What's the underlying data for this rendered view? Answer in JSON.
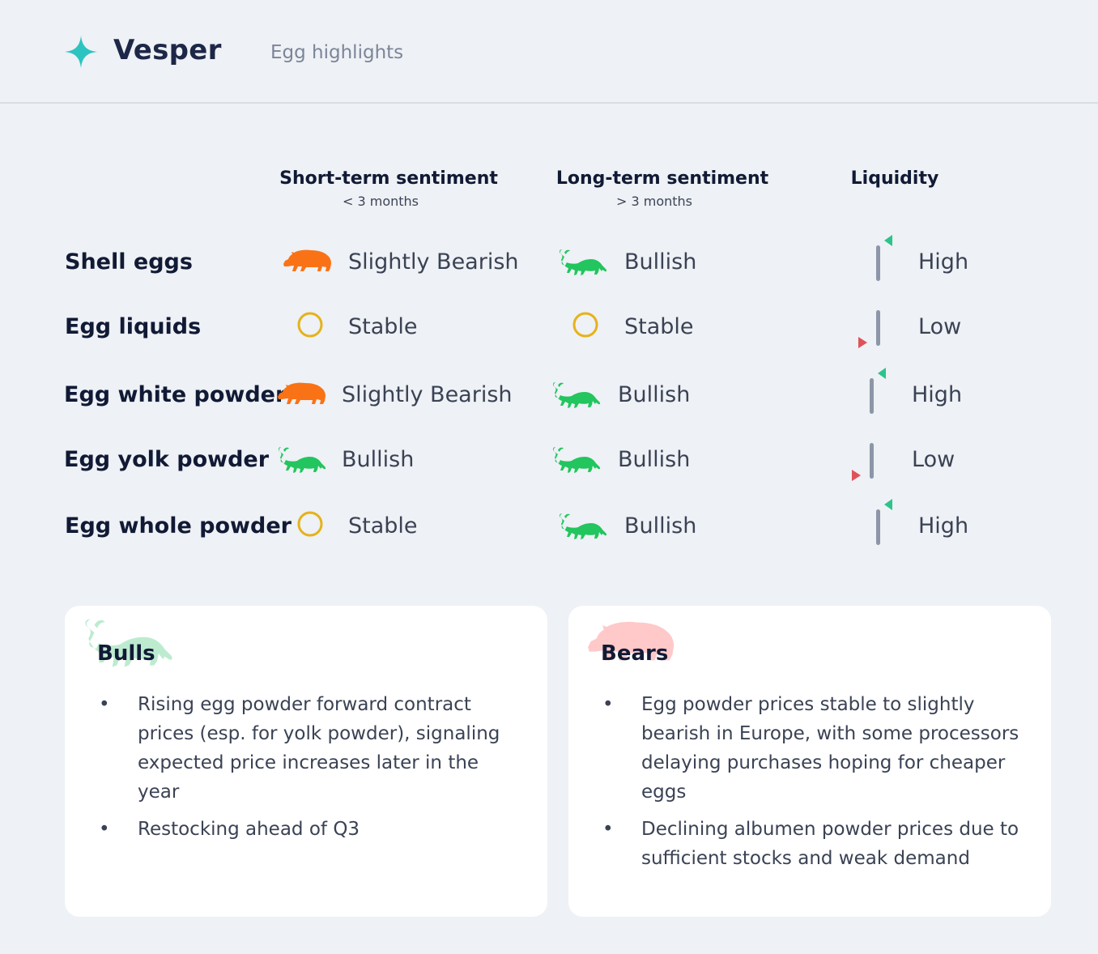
{
  "header": {
    "brand": "Vesper",
    "section_title": "Egg highlights",
    "logo_icon": "sparkle-icon",
    "logo_color": "#2cc4c0"
  },
  "columns": {
    "short_term": {
      "title": "Short-term sentiment",
      "subtitle": "< 3 months"
    },
    "long_term": {
      "title": "Long-term sentiment",
      "subtitle": "> 3 months"
    },
    "liquidity": {
      "title": "Liquidity"
    }
  },
  "colors": {
    "bull": "#22c55e",
    "bear": "#f97316",
    "stable": "#e5b21a",
    "liquidity_up": "#2bc48a",
    "liquidity_down": "#e0525a",
    "liquidity_bar": "#8d96a8"
  },
  "rows": [
    {
      "label": "Shell eggs",
      "short": {
        "icon": "bear-icon",
        "text": "Slightly Bearish"
      },
      "long": {
        "icon": "bull-icon",
        "text": "Bullish"
      },
      "liquidity": {
        "icon": "liquidity-up-icon",
        "text": "High"
      }
    },
    {
      "label": "Egg liquids",
      "short": {
        "icon": "circle-icon",
        "text": "Stable"
      },
      "long": {
        "icon": "circle-icon",
        "text": "Stable"
      },
      "liquidity": {
        "icon": "liquidity-down-icon",
        "text": "Low"
      }
    },
    {
      "label": "Egg white powder",
      "short": {
        "icon": "bear-icon",
        "text": "Slightly Bearish"
      },
      "long": {
        "icon": "bull-icon",
        "text": "Bullish"
      },
      "liquidity": {
        "icon": "liquidity-up-icon",
        "text": "High"
      }
    },
    {
      "label": "Egg yolk powder",
      "short": {
        "icon": "bull-icon",
        "text": "Bullish"
      },
      "long": {
        "icon": "bull-icon",
        "text": "Bullish"
      },
      "liquidity": {
        "icon": "liquidity-down-icon",
        "text": "Low"
      }
    },
    {
      "label": "Egg whole powder",
      "short": {
        "icon": "circle-icon",
        "text": "Stable"
      },
      "long": {
        "icon": "bull-icon",
        "text": "Bullish"
      },
      "liquidity": {
        "icon": "liquidity-up-icon",
        "text": "High"
      }
    }
  ],
  "bulls": {
    "title": "Bulls",
    "watermark_icon": "bull-icon",
    "watermark_color": "#bdebd0",
    "items": [
      "Rising egg powder forward contract prices (esp. for yolk powder), signaling expected price increases later in the year",
      "Restocking ahead of Q3"
    ]
  },
  "bears": {
    "title": "Bears",
    "watermark_icon": "bear-icon",
    "watermark_color": "#ffc9c9",
    "items": [
      "Egg powder prices stable to slightly bearish in Europe, with some processors delaying purchases hoping for cheaper eggs",
      "Declining albumen powder prices due to sufficient stocks and weak demand"
    ]
  },
  "bullet_glyph": "•"
}
